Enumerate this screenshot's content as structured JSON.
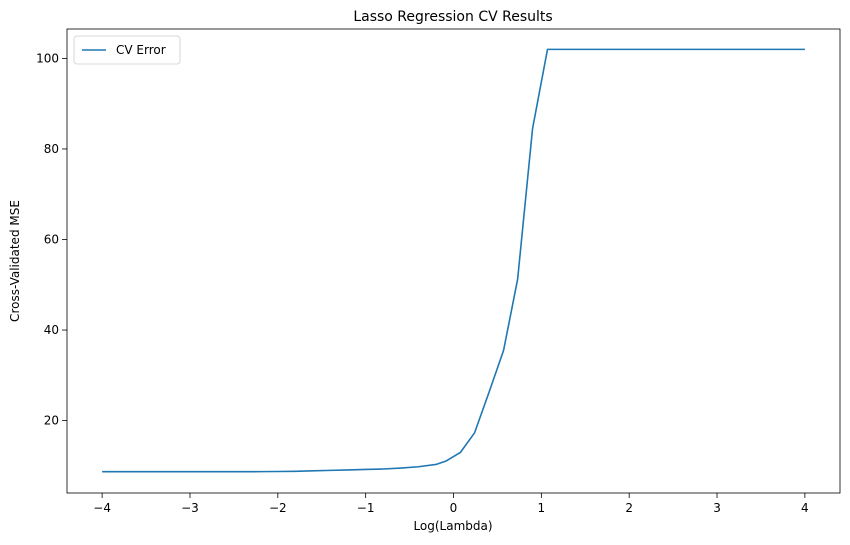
{
  "chart_data": {
    "type": "line",
    "title": "Lasso Regression CV Results",
    "xlabel": "Log(Lambda)",
    "ylabel": "Cross-Validated MSE",
    "xlim": [
      -4.4,
      4.4
    ],
    "ylim": [
      4.0,
      106.5
    ],
    "xticks": [
      -4,
      -3,
      -2,
      -1,
      0,
      1,
      2,
      3,
      4
    ],
    "xtick_labels": [
      "−4",
      "−3",
      "−2",
      "−1",
      "0",
      "1",
      "2",
      "3",
      "4"
    ],
    "yticks": [
      20,
      40,
      60,
      80,
      100
    ],
    "ytick_labels": [
      "20",
      "40",
      "60",
      "80",
      "100"
    ],
    "grid": false,
    "legend_position": "top-left",
    "line_color": "#1f77b4",
    "series": [
      {
        "name": "CV Error",
        "x": [
          -4.0,
          -3.8,
          -3.6,
          -3.4,
          -3.2,
          -3.0,
          -2.8,
          -2.6,
          -2.4,
          -2.2,
          -2.0,
          -1.8,
          -1.6,
          -1.4,
          -1.2,
          -1.0,
          -0.8,
          -0.6,
          -0.4,
          -0.2,
          -0.08,
          0.08,
          0.24,
          0.4,
          0.57,
          0.73,
          0.9,
          1.07,
          1.3,
          1.6,
          2.0,
          2.5,
          3.0,
          3.5,
          4.0
        ],
        "y": [
          8.7,
          8.7,
          8.7,
          8.7,
          8.7,
          8.7,
          8.7,
          8.7,
          8.7,
          8.72,
          8.75,
          8.8,
          8.9,
          9.0,
          9.1,
          9.2,
          9.3,
          9.5,
          9.8,
          10.3,
          11.1,
          13.0,
          17.3,
          26.0,
          35.5,
          51.2,
          84.5,
          102.0,
          102.0,
          102.0,
          102.0,
          102.0,
          102.0,
          102.0,
          102.0
        ]
      }
    ]
  }
}
